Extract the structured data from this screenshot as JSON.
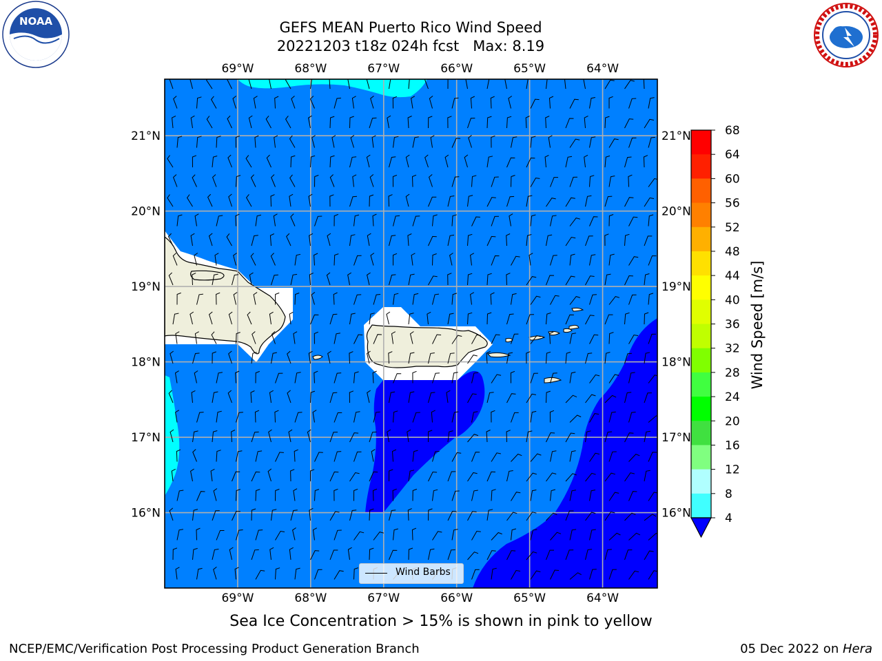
{
  "title_line1": "GEFS MEAN Puerto Rico Wind Speed",
  "title_line2": "20221203 t18z 024h fcst   Max: 8.19",
  "logos": {
    "left": {
      "name": "NOAA",
      "ring_text": "NATIONAL OCEANIC AND ATMOSPHERIC ADMINISTRATION · U.S. DEPARTMENT OF COMMERCE"
    },
    "right": {
      "name": "NATIONAL WEATHER SERVICE"
    }
  },
  "map": {
    "lon_ticks": [
      "69°W",
      "68°W",
      "67°W",
      "66°W",
      "65°W",
      "64°W"
    ],
    "lon_values": [
      -69,
      -68,
      -67,
      -66,
      -65,
      -64
    ],
    "lat_ticks": [
      "21°N",
      "20°N",
      "19°N",
      "18°N",
      "17°N",
      "16°N"
    ],
    "lat_values": [
      21,
      20,
      19,
      18,
      17,
      16
    ],
    "extent": {
      "lon_min": -70.0,
      "lon_max": -63.25,
      "lat_min": 15.0,
      "lat_max": 21.75
    },
    "gridlines": true,
    "legend_label": "Wind Barbs"
  },
  "colorbar": {
    "label": "Wind Speed [m/s]",
    "ticks": [
      "4",
      "8",
      "12",
      "16",
      "20",
      "24",
      "28",
      "32",
      "36",
      "40",
      "44",
      "48",
      "52",
      "56",
      "60",
      "64",
      "68"
    ],
    "colors": [
      "#0000ff",
      "#0080ff",
      "#00ffff",
      "#40ffff",
      "#80ffff",
      "#b0ffff",
      "#40ff80",
      "#00e000",
      "#00ff00",
      "#80ff00",
      "#c0ff00",
      "#e0ff00",
      "#ffff00",
      "#ffe000",
      "#ffc000",
      "#ff8000",
      "#ff6000",
      "#ff4000",
      "#ff0000"
    ],
    "extend": "min",
    "under_color": "#0000ff"
  },
  "note": "Sea Ice Concentration > 15% is shown in pink to yellow",
  "footer": {
    "left": "NCEP/EMC/Verification Post Processing Product Generation Branch",
    "date": "05 Dec 2022 on ",
    "machine": "Hera"
  }
}
